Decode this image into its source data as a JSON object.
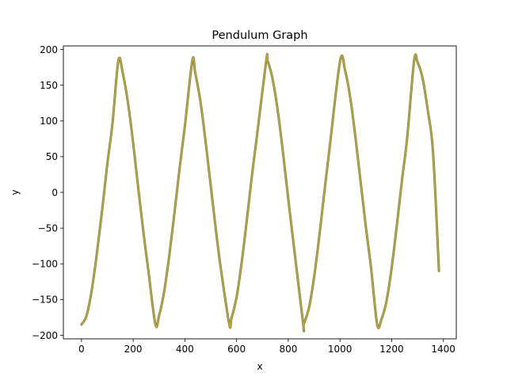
{
  "chart_data": {
    "type": "line",
    "title": "Pendulum Graph",
    "xlabel": "x",
    "ylabel": "y",
    "xlim": [
      -70,
      1450
    ],
    "ylim": [
      -205,
      205
    ],
    "x_ticks": [
      0,
      200,
      400,
      600,
      800,
      1000,
      1200,
      1400
    ],
    "y_ticks": [
      -200,
      -150,
      -100,
      -50,
      0,
      50,
      100,
      150,
      200
    ],
    "x_tick_labels": [
      "0",
      "200",
      "400",
      "600",
      "800",
      "1000",
      "1200",
      "1400"
    ],
    "y_tick_labels": [
      "−200",
      "−150",
      "−100",
      "−50",
      "0",
      "50",
      "100",
      "150",
      "200"
    ],
    "grid": false,
    "series": [
      {
        "color": "#c8b400",
        "edge_color": "#7a7a7a",
        "x": [
          0,
          20,
          40,
          60,
          80,
          100,
          120,
          143,
          160,
          180,
          200,
          220,
          240,
          260,
          286,
          300,
          320,
          340,
          360,
          380,
          400,
          429,
          440,
          460,
          480,
          500,
          520,
          540,
          572,
          580,
          600,
          620,
          640,
          660,
          680,
          715,
          720,
          740,
          760,
          780,
          800,
          820,
          858,
          860,
          880,
          900,
          920,
          940,
          960,
          1001,
          1020,
          1040,
          1060,
          1080,
          1100,
          1120,
          1144,
          1160,
          1180,
          1200,
          1220,
          1240,
          1260,
          1287,
          1300,
          1320,
          1340,
          1360,
          1383
        ],
        "y": [
          -185,
          -172.2,
          -136.3,
          -84.4,
          -24.8,
          39.6,
          96.7,
          185,
          166.4,
          125.3,
          68.9,
          5.0,
          -56.8,
          -112.9,
          -185,
          -173.0,
          -138.6,
          -87.5,
          -27.9,
          34.9,
          92.7,
          185,
          167.6,
          127.8,
          71.7,
          9.6,
          -52.6,
          -108.8,
          -185,
          -176.8,
          -146.6,
          -97.6,
          -37.6,
          25.1,
          82.4,
          185,
          184.7,
          157.6,
          112.4,
          54.4,
          -9.2,
          -70.3,
          -185,
          -184.4,
          -161.6,
          -118.4,
          -61.4,
          1.5,
          62.7,
          185,
          170.2,
          131.9,
          76.6,
          14.4,
          -47.8,
          -105.0,
          -185,
          -178.2,
          -152.0,
          -105.6,
          -46.0,
          17.3,
          76.6,
          185,
          182.3,
          159.1,
          113.9,
          56.2,
          -110
        ]
      }
    ]
  }
}
